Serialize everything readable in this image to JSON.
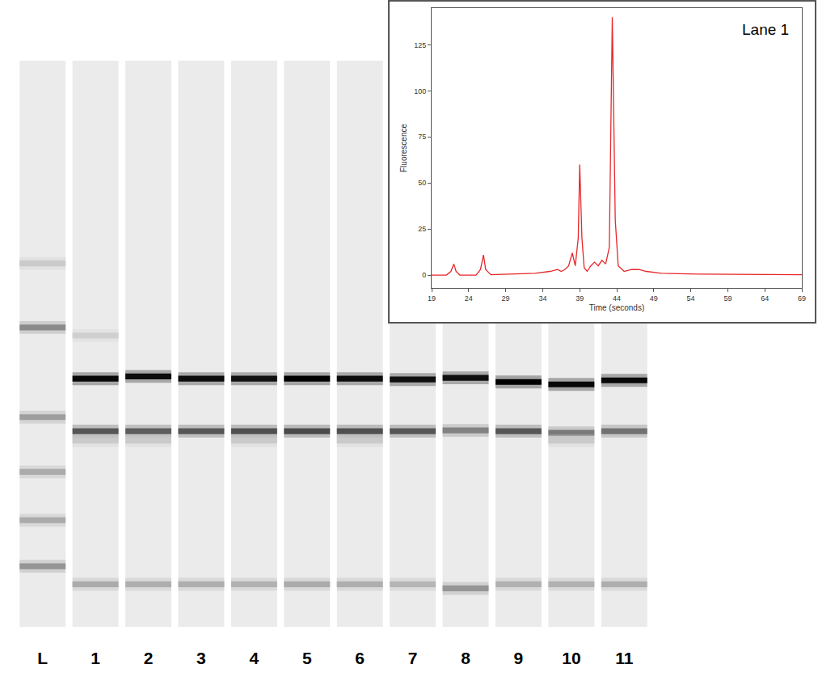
{
  "gel": {
    "time_range": [
      22.2,
      70.8
    ],
    "tick_labels": "x",
    "lanes": [
      {
        "label": "L",
        "bands": [
          {
            "time": 53.4,
            "intensity": 3
          },
          {
            "time": 47.9,
            "intensity": 25
          },
          {
            "time": 40.2,
            "intensity": 16
          },
          {
            "time": 35.5,
            "intensity": 11
          },
          {
            "time": 31.35,
            "intensity": 11
          },
          {
            "time": 27.4,
            "intensity": 20
          }
        ]
      },
      {
        "label": "1",
        "bands": [
          {
            "time": 47.2,
            "intensity": 2
          },
          {
            "time": 43.5,
            "intensity": 140
          },
          {
            "time": 39.0,
            "intensity": 60
          },
          {
            "time": 38.2,
            "intensity": 3
          },
          {
            "time": 25.86,
            "intensity": 11
          }
        ]
      },
      {
        "label": "2",
        "bands": [
          {
            "time": 43.7,
            "intensity": 135
          },
          {
            "time": 39.0,
            "intensity": 55
          },
          {
            "time": 38.2,
            "intensity": 3
          },
          {
            "time": 25.86,
            "intensity": 10
          }
        ]
      },
      {
        "label": "3",
        "bands": [
          {
            "time": 43.5,
            "intensity": 135
          },
          {
            "time": 39.0,
            "intensity": 60
          },
          {
            "time": 25.86,
            "intensity": 10
          }
        ]
      },
      {
        "label": "4",
        "bands": [
          {
            "time": 43.5,
            "intensity": 130
          },
          {
            "time": 39.0,
            "intensity": 65
          },
          {
            "time": 38.2,
            "intensity": 3
          },
          {
            "time": 25.86,
            "intensity": 9
          }
        ]
      },
      {
        "label": "5",
        "bands": [
          {
            "time": 43.5,
            "intensity": 150
          },
          {
            "time": 39.0,
            "intensity": 70
          },
          {
            "time": 25.86,
            "intensity": 11
          }
        ]
      },
      {
        "label": "6",
        "bands": [
          {
            "time": 43.5,
            "intensity": 135
          },
          {
            "time": 39.0,
            "intensity": 65
          },
          {
            "time": 38.2,
            "intensity": 3
          },
          {
            "time": 25.86,
            "intensity": 10
          }
        ]
      },
      {
        "label": "7",
        "bands": [
          {
            "time": 43.43,
            "intensity": 130
          },
          {
            "time": 39.0,
            "intensity": 60
          },
          {
            "time": 25.86,
            "intensity": 8
          }
        ]
      },
      {
        "label": "8",
        "bands": [
          {
            "time": 43.57,
            "intensity": 130
          },
          {
            "time": 39.06,
            "intensity": 30
          },
          {
            "time": 25.5,
            "intensity": 20
          }
        ]
      },
      {
        "label": "9",
        "bands": [
          {
            "time": 43.22,
            "intensity": 150
          },
          {
            "time": 39.0,
            "intensity": 60
          },
          {
            "time": 25.86,
            "intensity": 9
          }
        ]
      },
      {
        "label": "10",
        "bands": [
          {
            "time": 43.01,
            "intensity": 140
          },
          {
            "time": 38.85,
            "intensity": 35
          },
          {
            "time": 38.2,
            "intensity": 3
          },
          {
            "time": 25.86,
            "intensity": 9
          }
        ]
      },
      {
        "label": "11",
        "bands": [
          {
            "time": 43.36,
            "intensity": 140
          },
          {
            "time": 39.0,
            "intensity": 40
          },
          {
            "time": 25.86,
            "intensity": 10
          }
        ]
      }
    ]
  },
  "chart_data": {
    "type": "line",
    "title": "Lane 1",
    "x_label": "Time (seconds)",
    "y_label": "Fluorescence",
    "x": [
      19,
      21,
      21.6,
      22,
      22.3,
      22.8,
      25,
      25.6,
      26,
      26.3,
      27,
      30,
      33,
      35,
      36,
      36.5,
      37,
      37.5,
      38,
      38.4,
      38.8,
      39,
      39.3,
      39.6,
      40,
      40.5,
      41,
      41.5,
      42,
      42.5,
      43,
      43.4,
      43.8,
      44.2,
      45,
      46,
      47,
      48,
      50,
      55,
      60,
      65,
      69
    ],
    "values": [
      0,
      0,
      2,
      6,
      2,
      0,
      0,
      3,
      11,
      3,
      0.2,
      0.5,
      1,
      2,
      3,
      2,
      3,
      5,
      12,
      5,
      20,
      60,
      20,
      4,
      2,
      5,
      7,
      5,
      8,
      6,
      15,
      140,
      30,
      5,
      2,
      3,
      3,
      2,
      1,
      0.5,
      0.3,
      0.2,
      0.2
    ],
    "color": "#e8262a",
    "xlim": [
      19,
      69
    ],
    "xticks": [
      19,
      24,
      29,
      34,
      39,
      44,
      49,
      54,
      59,
      64,
      69
    ],
    "ylim": [
      -7,
      145
    ],
    "yticks": [
      0,
      25,
      50,
      75,
      100,
      125
    ],
    "grid": false
  }
}
